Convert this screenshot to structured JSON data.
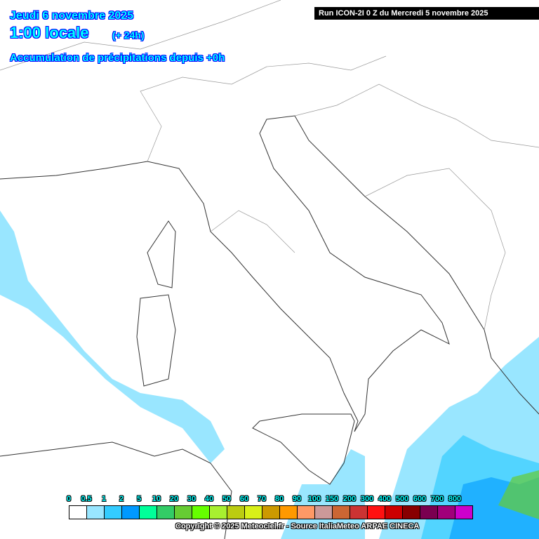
{
  "header": {
    "date": "Jeudi 6 novembre 2025",
    "time": "1:00 locale",
    "lead": "(+ 24h)",
    "field": "Accumulation de précipitations depuis +0h",
    "run": "Run ICON-2I 0 Z du Mercredi 5 novembre 2025"
  },
  "legend": {
    "labels": [
      "0",
      "0.5",
      "1",
      "2",
      "5",
      "10",
      "20",
      "30",
      "40",
      "50",
      "60",
      "70",
      "80",
      "90",
      "100",
      "150",
      "200",
      "300",
      "400",
      "500",
      "600",
      "700",
      "800"
    ],
    "colors": [
      "#ffffff",
      "#99e6ff",
      "#33ccff",
      "#0099ff",
      "#00ff99",
      "#33cc66",
      "#66cc33",
      "#66ff00",
      "#a8f030",
      "#bbcc11",
      "#d8f018",
      "#cc9900",
      "#ff9900",
      "#ff9966",
      "#cc9999",
      "#cc6633",
      "#cc3333",
      "#ff1111",
      "#cc0000",
      "#880000",
      "#7a0050",
      "#a0007a",
      "#cc00cc"
    ]
  },
  "copyright": "Copyright © 2025 Meteociel.fr - Source ItaliaMeteo ARPAE CINECA"
}
